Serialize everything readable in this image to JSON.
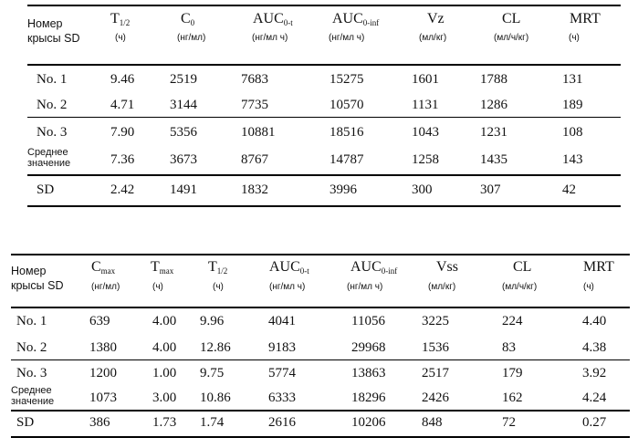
{
  "table1": {
    "header": {
      "label_line1": "Номер",
      "label_line2": "крысы SD",
      "cols": [
        {
          "main": "T",
          "sub": "1/2",
          "unit": "(ч)"
        },
        {
          "main": "C",
          "sub": "0",
          "unit": "(нг/мл)"
        },
        {
          "main": "AUC",
          "sub": "0-t",
          "unit": "(нг/мл ч)"
        },
        {
          "main": "AUC",
          "sub": "0-inf",
          "unit": "(нг/мл ч)"
        },
        {
          "main": "Vz",
          "sub": "",
          "unit": "(мл/кг)"
        },
        {
          "main": "CL",
          "sub": "",
          "unit": "(мл/ч/кг)"
        },
        {
          "main": "MRT",
          "sub": "",
          "unit": "(ч)"
        }
      ]
    },
    "rows": [
      {
        "label": "No. 1",
        "values": [
          "9.46",
          "2519",
          "7683",
          "15275",
          "1601",
          "1788",
          "131"
        ]
      },
      {
        "label": "No. 2",
        "values": [
          "4.71",
          "3144",
          "7735",
          "10570",
          "1131",
          "1286",
          "189"
        ]
      },
      {
        "label": "No. 3",
        "values": [
          "7.90",
          "5356",
          "10881",
          "18516",
          "1043",
          "1231",
          "108"
        ]
      },
      {
        "label_line1": "Среднее",
        "label_line2": "значение",
        "values": [
          "7.36",
          "3673",
          "8767",
          "14787",
          "1258",
          "1435",
          "143"
        ]
      },
      {
        "label": "SD",
        "values": [
          "2.42",
          "1491",
          "1832",
          "3996",
          "300",
          "307",
          "42"
        ]
      }
    ]
  },
  "table2": {
    "header": {
      "label_line1": "Номер",
      "label_line2": "крысы SD",
      "cols": [
        {
          "main": "C",
          "sub": "max",
          "unit": "(нг/мл)"
        },
        {
          "main": "T",
          "sub": "max",
          "unit": "(ч)"
        },
        {
          "main": "T",
          "sub": "1/2",
          "unit": "(ч)"
        },
        {
          "main": "AUC",
          "sub": "0-t",
          "unit": "(нг/мл ч)"
        },
        {
          "main": "AUC",
          "sub": "0-inf",
          "unit": "(нг/мл ч)"
        },
        {
          "main": "Vss",
          "sub": "",
          "unit": "(мл/кг)"
        },
        {
          "main": "CL",
          "sub": "",
          "unit": "(мл/ч/кг)"
        },
        {
          "main": "MRT",
          "sub": "",
          "unit": "(ч)"
        }
      ]
    },
    "rows": [
      {
        "label": "No. 1",
        "values": [
          "639",
          "4.00",
          "9.96",
          "4041",
          "11056",
          "3225",
          "224",
          "4.40"
        ]
      },
      {
        "label": "No. 2",
        "values": [
          "1380",
          "4.00",
          "12.86",
          "9183",
          "29968",
          "1536",
          "83",
          "4.38"
        ]
      },
      {
        "label": "No. 3",
        "values": [
          "1200",
          "1.00",
          "9.75",
          "5774",
          "13863",
          "2517",
          "179",
          "3.92"
        ]
      },
      {
        "label_line1": "Среднее",
        "label_line2": "значение",
        "values": [
          "1073",
          "3.00",
          "10.86",
          "6333",
          "18296",
          "2426",
          "162",
          "4.24"
        ]
      },
      {
        "label": "SD",
        "values": [
          "386",
          "1.73",
          "1.74",
          "2616",
          "10206",
          "848",
          "72",
          "0.27"
        ]
      }
    ]
  }
}
